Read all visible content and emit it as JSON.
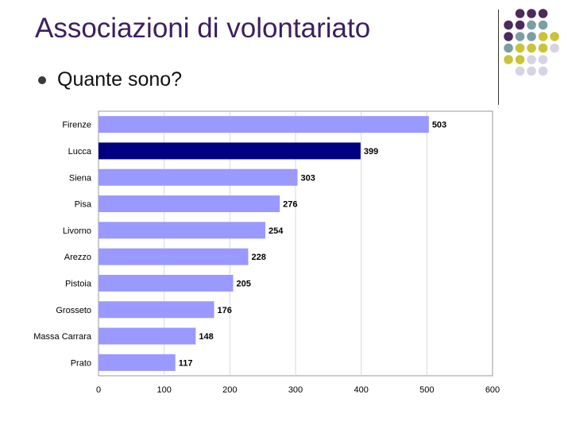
{
  "slide": {
    "title": "Associazioni di volontariato",
    "bullet": "Quante sono?"
  },
  "decor": {
    "dot_colors": {
      "purple": "#4b2a5c",
      "teal": "#7a9ea3",
      "olive": "#c8c43a",
      "lavender": "#d6d4e2"
    },
    "dot_rows": [
      [
        "",
        "purple",
        "purple",
        "purple"
      ],
      [
        "purple",
        "purple",
        "teal",
        "teal"
      ],
      [
        "purple",
        "teal",
        "teal",
        "olive",
        "olive"
      ],
      [
        "teal",
        "olive",
        "olive",
        "olive",
        "lavender"
      ],
      [
        "olive",
        "olive",
        "lavender",
        "lavender"
      ],
      [
        "",
        "lavender",
        "lavender",
        "lavender"
      ]
    ]
  },
  "chart_data": {
    "type": "bar",
    "orientation": "horizontal",
    "categories": [
      "Firenze",
      "Lucca",
      "Siena",
      "Pisa",
      "Livorno",
      "Arezzo",
      "Pistoia",
      "Grosseto",
      "Massa Carrara",
      "Prato"
    ],
    "values": [
      503,
      399,
      303,
      276,
      254,
      228,
      205,
      176,
      148,
      117
    ],
    "highlight_category": "Lucca",
    "xlim": [
      0,
      600
    ],
    "xticks": [
      0,
      100,
      200,
      300,
      400,
      500,
      600
    ],
    "grid": true,
    "colors": {
      "bar": "#9999ff",
      "highlight": "#000080",
      "grid": "#d8d8d8",
      "axis": "#999999"
    }
  }
}
